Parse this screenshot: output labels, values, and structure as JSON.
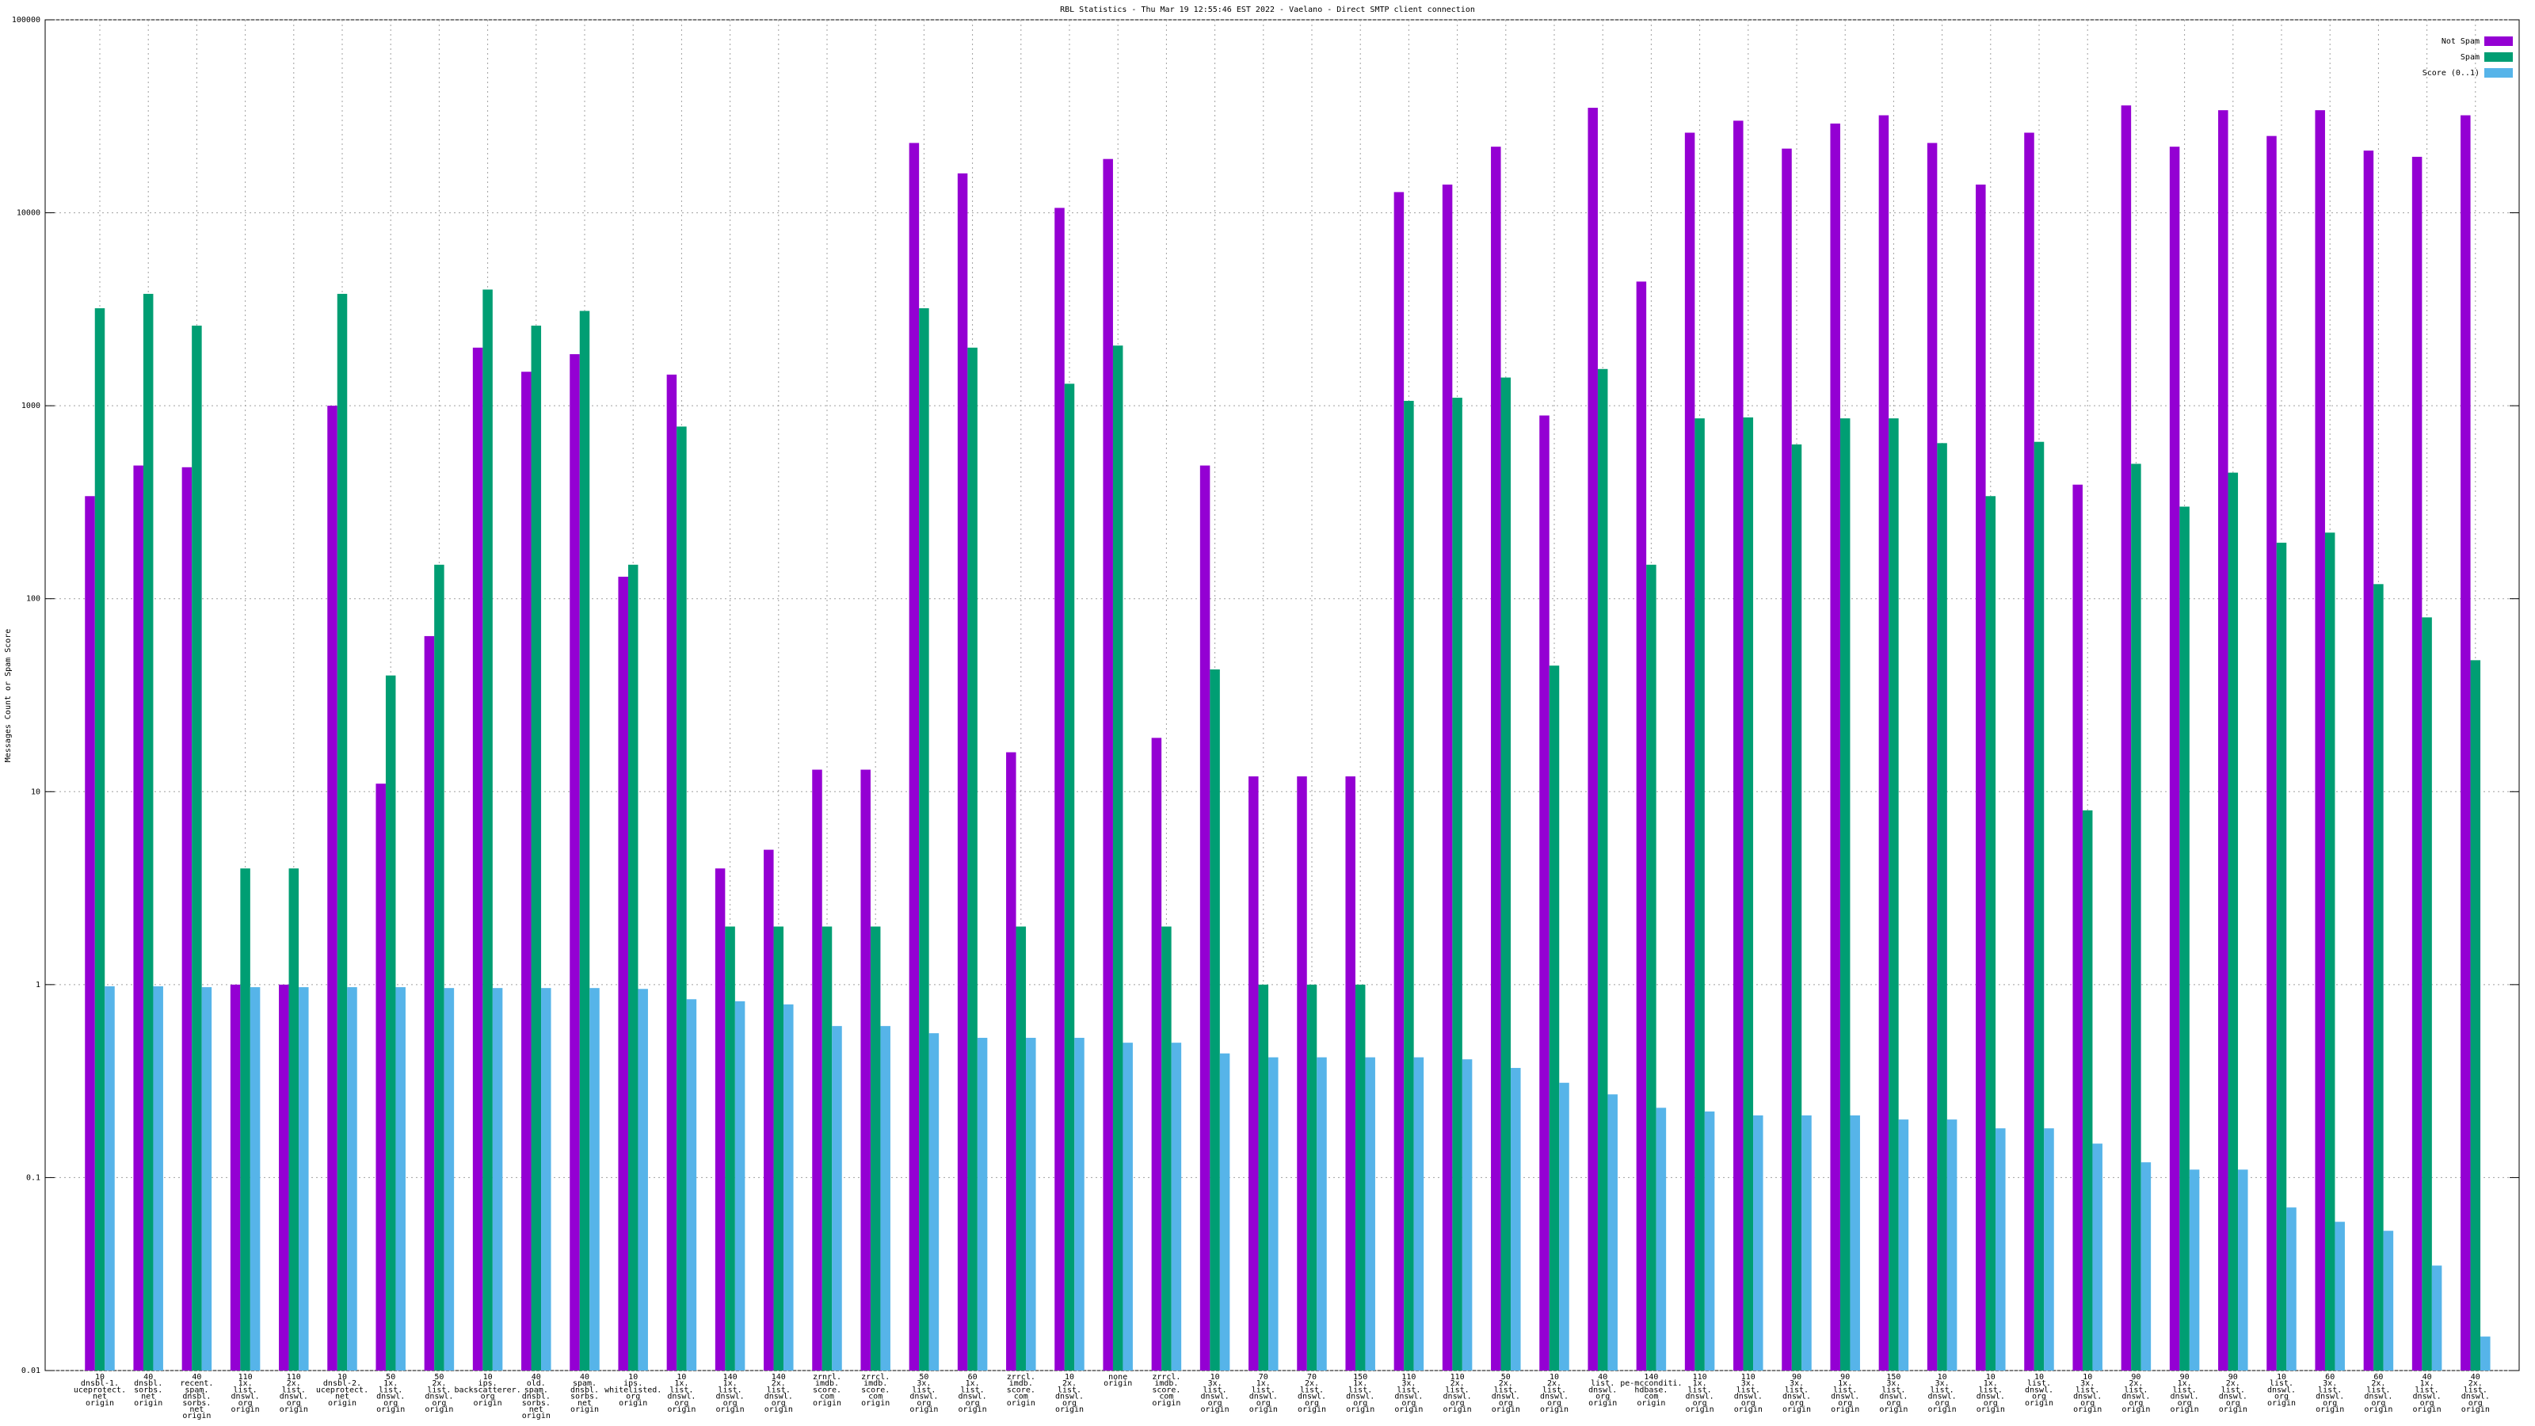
{
  "chart_data": {
    "type": "bar",
    "title": "RBL Statistics - Thu Mar 19 12:55:46 EST 2022 - Vaelano - Direct SMTP client connection",
    "ylabel": "Messages Count or Spam Score",
    "log_scale": true,
    "grid": true,
    "legend": "top right",
    "ylim": [
      0.01,
      100000
    ],
    "yticks": [
      0.01,
      0.1,
      1,
      10,
      100,
      1000,
      10000,
      100000
    ],
    "categories": [
      [
        "10",
        "dnsbl-1.",
        "uceprotect.",
        "net",
        "origin"
      ],
      [
        "40",
        "dnsbl.",
        "sorbs.",
        "net",
        "origin"
      ],
      [
        "40",
        "recent.",
        "spam.",
        "dnsbl.",
        "sorbs.",
        "net",
        "origin"
      ],
      [
        "110",
        "1x.",
        "list.",
        "dnswl.",
        "org",
        "origin"
      ],
      [
        "110",
        "2x.",
        "list.",
        "dnswl.",
        "org",
        "origin"
      ],
      [
        "10",
        "dnsbl-2.",
        "uceprotect.",
        "net",
        "origin"
      ],
      [
        "50",
        "1x.",
        "list.",
        "dnswl.",
        "org",
        "origin"
      ],
      [
        "50",
        "2x.",
        "list.",
        "dnswl.",
        "org",
        "origin"
      ],
      [
        "10",
        "ips.",
        "backscatterer.",
        "org",
        "origin"
      ],
      [
        "40",
        "old.",
        "spam.",
        "dnsbl.",
        "sorbs.",
        "net",
        "origin"
      ],
      [
        "40",
        "spam.",
        "dnsbl.",
        "sorbs.",
        "net",
        "origin"
      ],
      [
        "10",
        "ips.",
        "whitelisted.",
        "org",
        "origin"
      ],
      [
        "10",
        "1x.",
        "list.",
        "dnswl.",
        "org",
        "origin"
      ],
      [
        "140",
        "1x.",
        "list.",
        "dnswl.",
        "org",
        "origin"
      ],
      [
        "140",
        "2x.",
        "list.",
        "dnswl.",
        "org",
        "origin"
      ],
      [
        "zrnrl.",
        "imdb.",
        "score.",
        "com",
        "origin"
      ],
      [
        "zrrcl.",
        "imdb.",
        "score.",
        "com",
        "origin"
      ],
      [
        "50",
        "3x.",
        "list.",
        "dnswl.",
        "org",
        "origin"
      ],
      [
        "60",
        "1x.",
        "list.",
        "dnswl.",
        "org",
        "origin"
      ],
      [
        "zrrcl.",
        "imdb.",
        "score.",
        "com",
        "origin"
      ],
      [
        "10",
        "2x.",
        "list.",
        "dnswl.",
        "org",
        "origin"
      ],
      [
        "none",
        "origin"
      ],
      [
        "zrrcl.",
        "imdb.",
        "score.",
        "com",
        "origin"
      ],
      [
        "10",
        "3x.",
        "list.",
        "dnswl.",
        "org",
        "origin"
      ],
      [
        "70",
        "1x.",
        "list.",
        "dnswl.",
        "org",
        "origin"
      ],
      [
        "70",
        "2x.",
        "list.",
        "dnswl.",
        "org",
        "origin"
      ],
      [
        "150",
        "1x.",
        "list.",
        "dnswl.",
        "org",
        "origin"
      ],
      [
        "110",
        "3x.",
        "list.",
        "dnswl.",
        "org",
        "origin"
      ],
      [
        "110",
        "2x.",
        "list.",
        "dnswl.",
        "org",
        "origin"
      ],
      [
        "50",
        "2x.",
        "list.",
        "dnswl.",
        "org",
        "origin"
      ],
      [
        "10",
        "2x.",
        "list.",
        "dnswl.",
        "org",
        "origin"
      ],
      [
        "40",
        "list.",
        "dnswl.",
        "org",
        "origin"
      ],
      [
        "140",
        "pe-mcconditi.",
        "hdbase.",
        "com",
        "origin"
      ],
      [
        "110",
        "1x.",
        "list.",
        "dnswl.",
        "org",
        "origin"
      ],
      [
        "110",
        "3x.",
        "list.",
        "dnswl.",
        "org",
        "origin"
      ],
      [
        "90",
        "3x.",
        "list.",
        "dnswl.",
        "org",
        "origin"
      ],
      [
        "90",
        "1x.",
        "list.",
        "dnswl.",
        "org",
        "origin"
      ],
      [
        "150",
        "3x.",
        "list.",
        "dnswl.",
        "org",
        "origin"
      ],
      [
        "10",
        "3x.",
        "list.",
        "dnswl.",
        "org",
        "origin"
      ],
      [
        "10",
        "1x.",
        "list.",
        "dnswl.",
        "org",
        "origin"
      ],
      [
        "10",
        "list.",
        "dnswl.",
        "org",
        "origin"
      ],
      [
        "10",
        "3x.",
        "list.",
        "dnswl.",
        "org",
        "origin"
      ],
      [
        "90",
        "2x.",
        "list.",
        "dnswl.",
        "org",
        "origin"
      ],
      [
        "90",
        "1x.",
        "list.",
        "dnswl.",
        "org",
        "origin"
      ],
      [
        "90",
        "2x.",
        "list.",
        "dnswl.",
        "org",
        "origin"
      ],
      [
        "10",
        "list.",
        "dnswl.",
        "org",
        "origin"
      ],
      [
        "60",
        "3x.",
        "list.",
        "dnswl.",
        "org",
        "origin"
      ],
      [
        "60",
        "2x.",
        "list.",
        "dnswl.",
        "org",
        "origin"
      ],
      [
        "40",
        "1x.",
        "list.",
        "dnswl.",
        "org",
        "origin"
      ],
      [
        "40",
        "2x.",
        "list.",
        "dnswl.",
        "org",
        "origin"
      ]
    ],
    "series": [
      {
        "name": "Not Spam",
        "color": "#9400d3",
        "values": [
          340,
          490,
          480,
          1,
          1,
          1000,
          11,
          64,
          2000,
          1500,
          1850,
          130,
          1450,
          4,
          5,
          13,
          13,
          23000,
          16000,
          16,
          10600,
          19000,
          19,
          490,
          12,
          12,
          12,
          12800,
          14000,
          22000,
          890,
          35000,
          4400,
          26000,
          30000,
          21500,
          29000,
          32000,
          23000,
          14000,
          26000,
          390,
          36000,
          22000,
          34000,
          25000,
          34000,
          21000,
          19500,
          32000
        ]
      },
      {
        "name": "Spam",
        "color": "#009e73",
        "values": [
          3200,
          3800,
          2600,
          4,
          4,
          3800,
          40,
          150,
          4000,
          2600,
          3100,
          150,
          780,
          2,
          2,
          2,
          2,
          3200,
          2000,
          2,
          1300,
          2050,
          2,
          43,
          1,
          1,
          1,
          1060,
          1100,
          1400,
          45,
          1550,
          150,
          860,
          870,
          630,
          860,
          860,
          640,
          340,
          650,
          8,
          500,
          300,
          450,
          195,
          220,
          119,
          80,
          48
        ]
      },
      {
        "name": "Score (0..1)",
        "color": "#56b4e9",
        "values": [
          0.98,
          0.98,
          0.97,
          0.97,
          0.97,
          0.97,
          0.97,
          0.96,
          0.96,
          0.96,
          0.96,
          0.95,
          0.84,
          0.82,
          0.79,
          0.61,
          0.61,
          0.56,
          0.53,
          0.53,
          0.53,
          0.5,
          0.5,
          0.44,
          0.42,
          0.42,
          0.42,
          0.42,
          0.41,
          0.37,
          0.31,
          0.27,
          0.23,
          0.22,
          0.21,
          0.21,
          0.21,
          0.2,
          0.2,
          0.18,
          0.18,
          0.15,
          0.12,
          0.11,
          0.11,
          0.07,
          0.059,
          0.053,
          0.035,
          0.015
        ]
      }
    ]
  }
}
